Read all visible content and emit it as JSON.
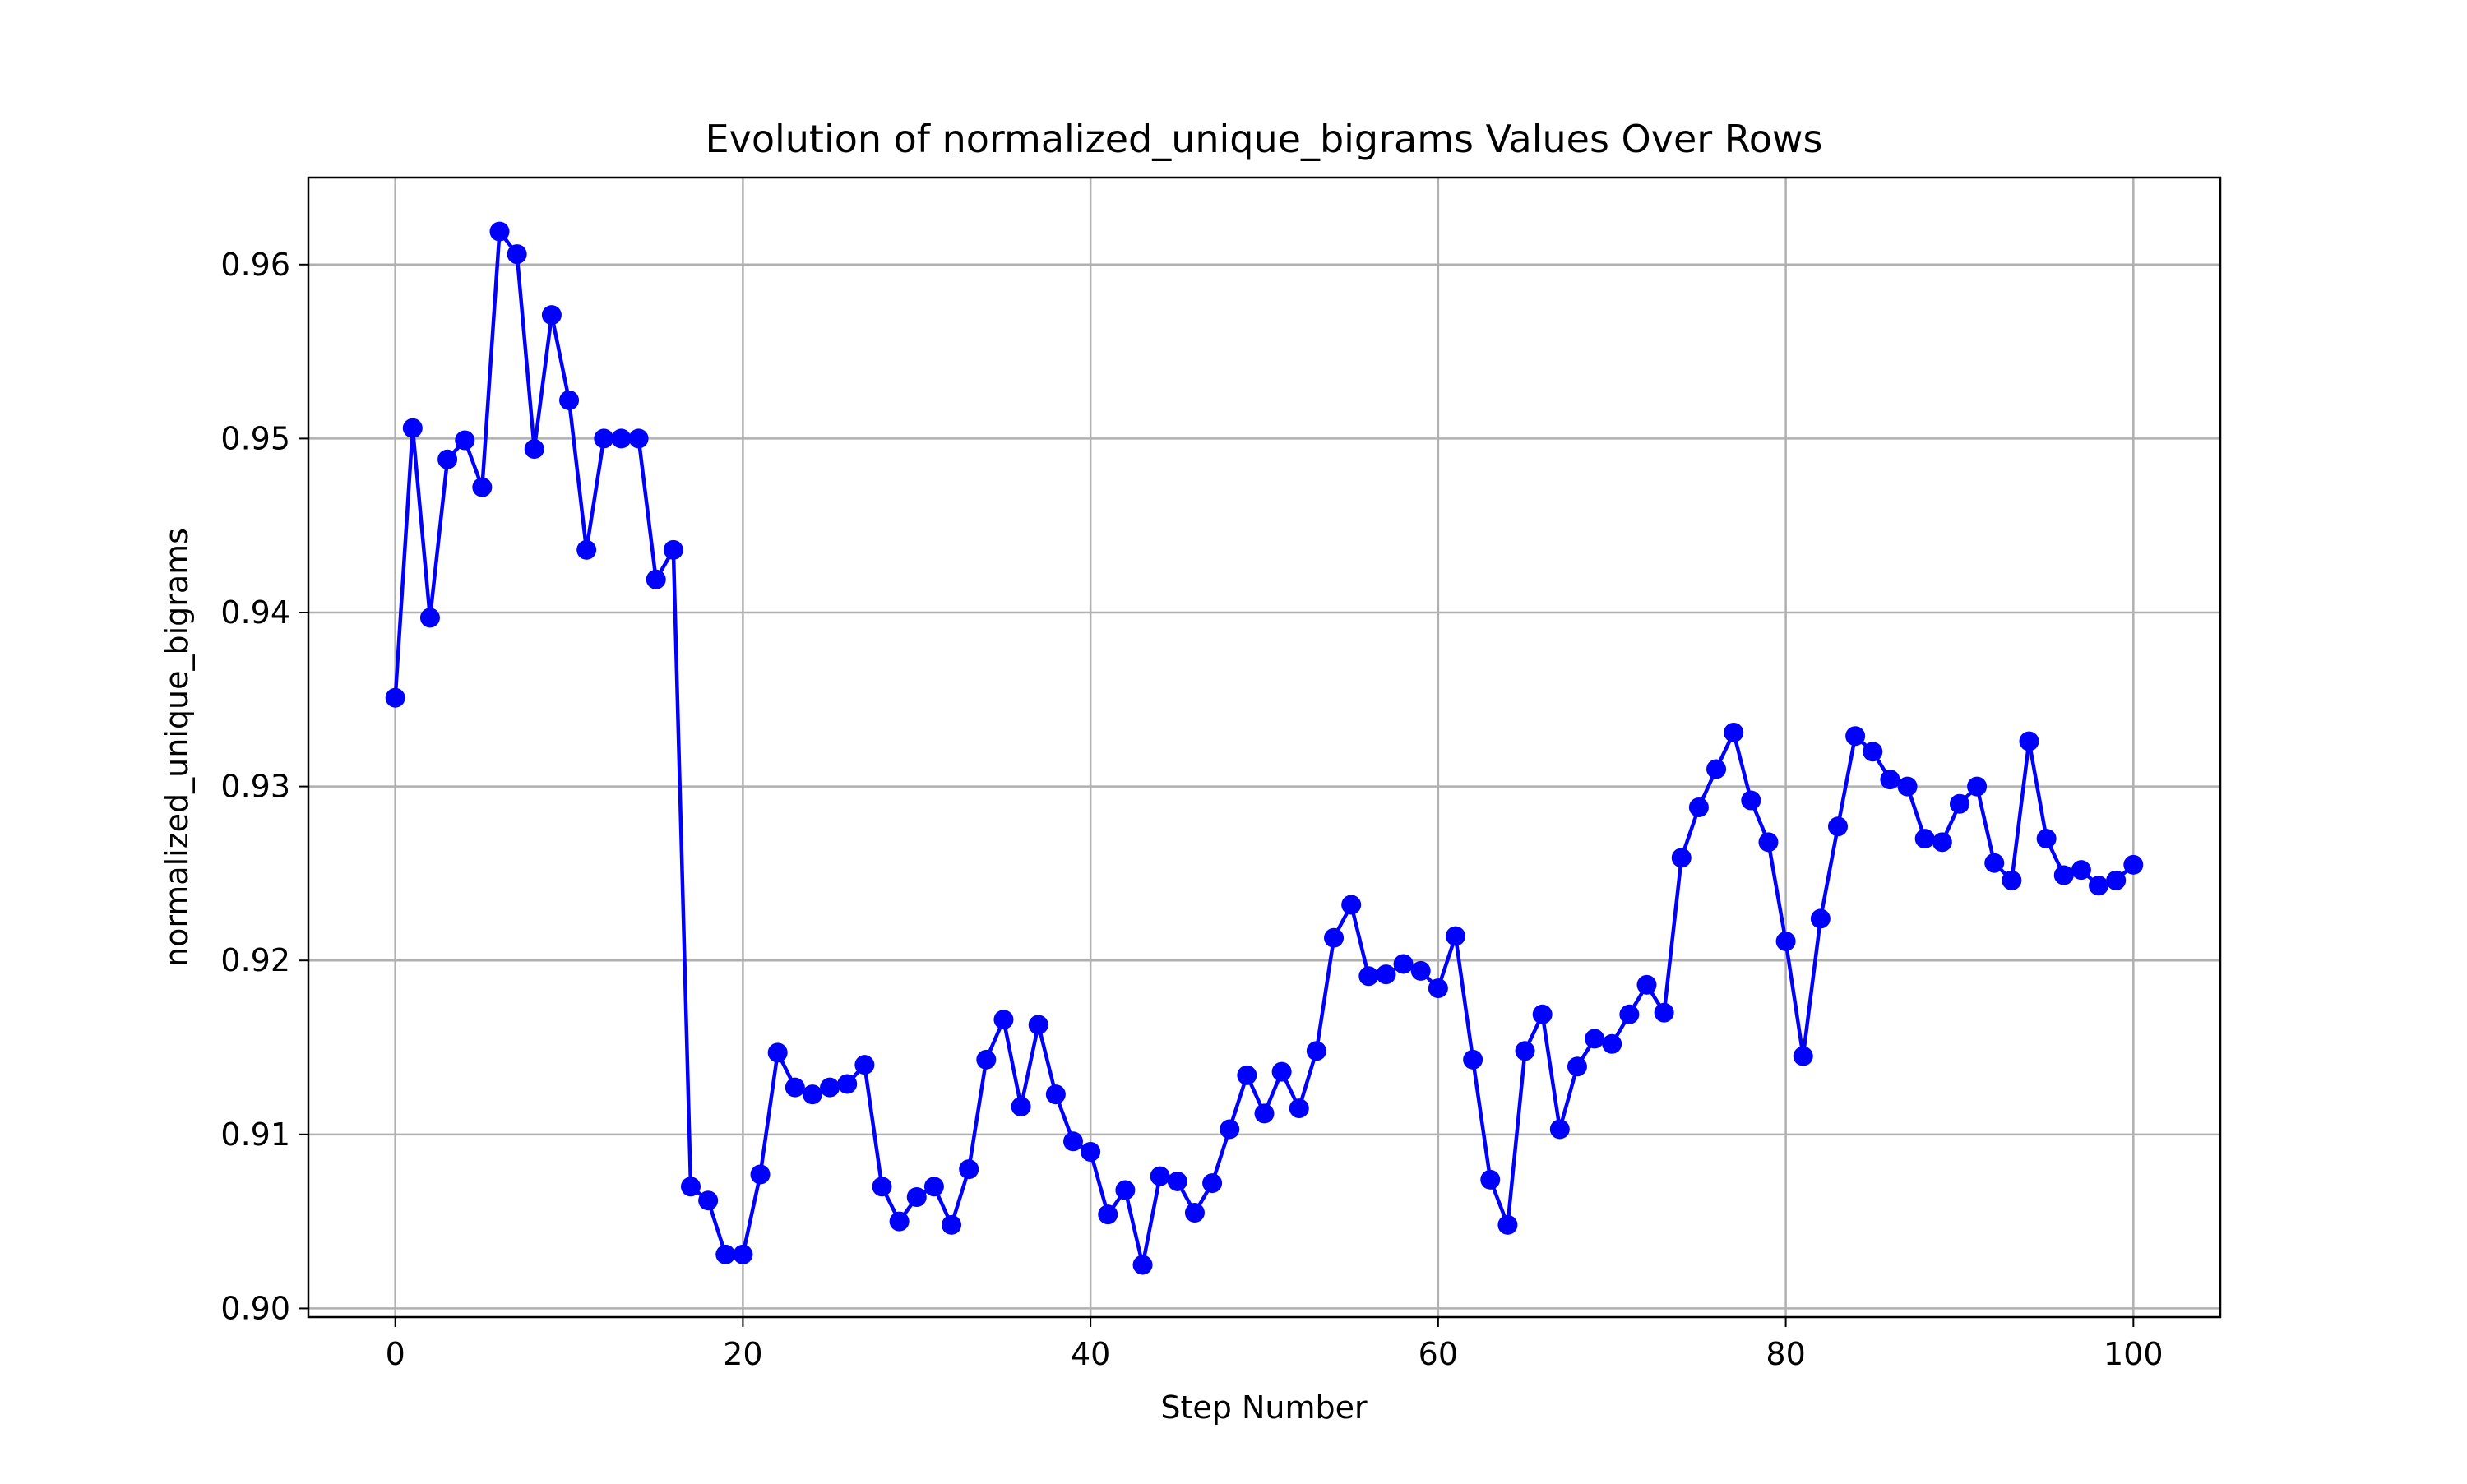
{
  "chart_data": {
    "type": "line",
    "title": "Evolution of normalized_unique_bigrams Values Over Rows",
    "xlabel": "Step Number",
    "ylabel": "normalized_unique_bigrams",
    "xlim": [
      -5,
      105
    ],
    "ylim": [
      0.8995,
      0.965
    ],
    "xticks": [
      0,
      20,
      40,
      60,
      80,
      100
    ],
    "yticks": [
      0.9,
      0.91,
      0.92,
      0.93,
      0.94,
      0.95,
      0.96
    ],
    "xtick_labels": [
      "0",
      "20",
      "40",
      "60",
      "80",
      "100"
    ],
    "ytick_labels": [
      "0.90",
      "0.91",
      "0.92",
      "0.93",
      "0.94",
      "0.95",
      "0.96"
    ],
    "grid": true,
    "line_color": "#0000ff",
    "marker": "circle",
    "x": [
      0,
      1,
      2,
      3,
      4,
      5,
      6,
      7,
      8,
      9,
      10,
      11,
      12,
      13,
      14,
      15,
      16,
      17,
      18,
      19,
      20,
      21,
      22,
      23,
      24,
      25,
      26,
      27,
      28,
      29,
      30,
      31,
      32,
      33,
      34,
      35,
      36,
      37,
      38,
      39,
      40,
      41,
      42,
      43,
      44,
      45,
      46,
      47,
      48,
      49,
      50,
      51,
      52,
      53,
      54,
      55,
      56,
      57,
      58,
      59,
      60,
      61,
      62,
      63,
      64,
      65,
      66,
      67,
      68,
      69,
      70,
      71,
      72,
      73,
      74,
      75,
      76,
      77,
      78,
      79,
      80,
      81,
      82,
      83,
      84,
      85,
      86,
      87,
      88,
      89,
      90,
      91,
      92,
      93,
      94,
      95,
      96,
      97,
      98,
      99,
      100
    ],
    "y": [
      0.9351,
      0.9506,
      0.9397,
      0.9488,
      0.9499,
      0.9472,
      0.9619,
      0.9606,
      0.9494,
      0.9571,
      0.9522,
      0.9436,
      0.95,
      0.95,
      0.95,
      0.9419,
      0.9436,
      0.907,
      0.9062,
      0.9031,
      0.9031,
      0.9077,
      0.9147,
      0.9127,
      0.9123,
      0.9127,
      0.9129,
      0.914,
      0.907,
      0.905,
      0.9064,
      0.907,
      0.9048,
      0.908,
      0.9143,
      0.9166,
      0.9116,
      0.9163,
      0.9123,
      0.9096,
      0.909,
      0.9054,
      0.9068,
      0.9025,
      0.9076,
      0.9073,
      0.9055,
      0.9072,
      0.9103,
      0.9134,
      0.9112,
      0.9136,
      0.9115,
      0.9148,
      0.9213,
      0.9232,
      0.9191,
      0.9192,
      0.9198,
      0.9194,
      0.9184,
      0.9214,
      0.9143,
      0.9074,
      0.9048,
      0.9148,
      0.9169,
      0.9103,
      0.9139,
      0.9155,
      0.9152,
      0.9169,
      0.9186,
      0.917,
      0.9259,
      0.9288,
      0.931,
      0.9331,
      0.9292,
      0.9268,
      0.9211,
      0.9145,
      0.9224,
      0.9277,
      0.9329,
      0.932,
      0.9304,
      0.93,
      0.927,
      0.9268,
      0.929,
      0.93,
      0.9256,
      0.9246,
      0.9326,
      0.927,
      0.9249,
      0.9252,
      0.9243,
      0.9246,
      0.9255
    ]
  }
}
